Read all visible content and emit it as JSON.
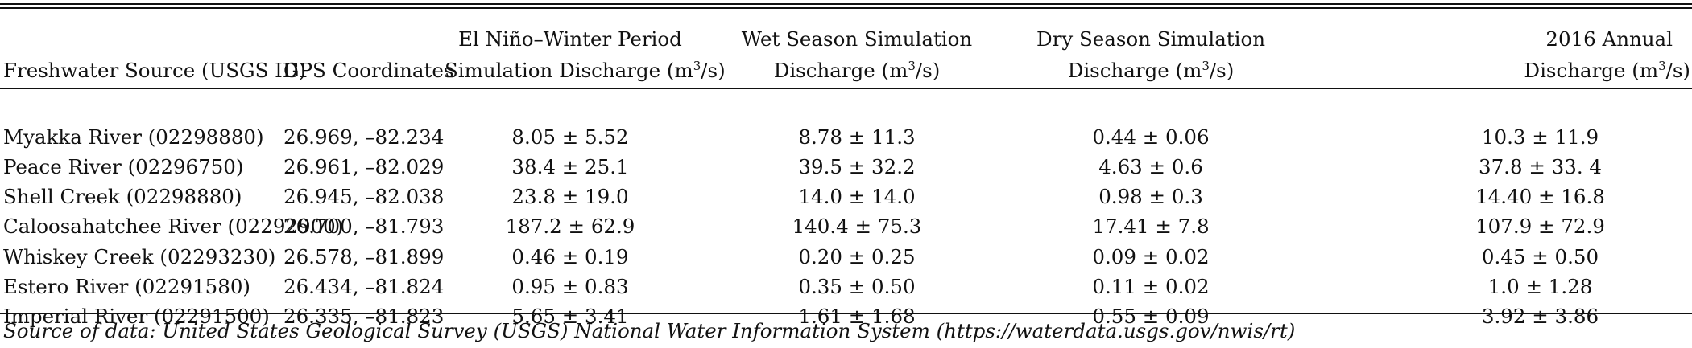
{
  "table": {
    "headers": [
      {
        "line1": "",
        "line2": "Freshwater Source (USGS ID)"
      },
      {
        "line1": "",
        "line2": "GPS Coordinates"
      },
      {
        "line1": "El Niño–Winter Period",
        "line2": "Simulation Discharge (m",
        "unit_sup": "3",
        "unit_tail": "/s)"
      },
      {
        "line1": "Wet Season Simulation",
        "line2": "Discharge (m",
        "unit_sup": "3",
        "unit_tail": "/s)"
      },
      {
        "line1": "Dry Season Simulation",
        "line2": "Discharge (m",
        "unit_sup": "3",
        "unit_tail": "/s)"
      },
      {
        "line1": "2016 Annual",
        "line2": "Discharge (m",
        "unit_sup": "3",
        "unit_tail": "/s)"
      }
    ],
    "rows": [
      [
        "Myakka River (02298880)",
        "26.969, –82.234",
        "8.05 ± 5.52",
        "8.78 ± 11.3",
        "0.44 ± 0.06",
        "10.3 ± 11.9"
      ],
      [
        "Peace River (02296750)",
        "26.961, –82.029",
        "38.4 ± 25.1",
        "39.5 ± 32.2",
        "4.63 ± 0.6",
        "37.8 ± 33. 4"
      ],
      [
        "Shell Creek (02298880)",
        "26.945, –82.038",
        "23.8 ± 19.0",
        "14.0 ± 14.0",
        "0.98 ± 0.3",
        "14.40 ± 16.8"
      ],
      [
        "Caloosahatchee River (02292900)",
        "26.700, –81.793",
        "187.2 ± 62.9",
        "140.4 ± 75.3",
        "17.41 ± 7.8",
        "107.9 ± 72.9"
      ],
      [
        "Whiskey Creek (02293230)",
        "26.578, –81.899",
        "0.46 ± 0.19",
        "0.20 ± 0.25",
        "0.09 ± 0.02",
        "0.45 ± 0.50"
      ],
      [
        "Estero River (02291580)",
        "26.434, –81.824",
        "0.95 ± 0.83",
        "0.35 ± 0.50",
        "0.11 ± 0.02",
        "1.0 ± 1.28"
      ],
      [
        "Imperial River (02291500)",
        "26.335, –81.823",
        "5.65 ± 3.41",
        "1.61 ± 1.68",
        "0.55 ± 0.09",
        "3.92 ± 3.86"
      ]
    ]
  },
  "footnote": "Source of data: United States Geological Survey (USGS) National Water Information System (https://waterdata.usgs.gov/nwis/rt)"
}
